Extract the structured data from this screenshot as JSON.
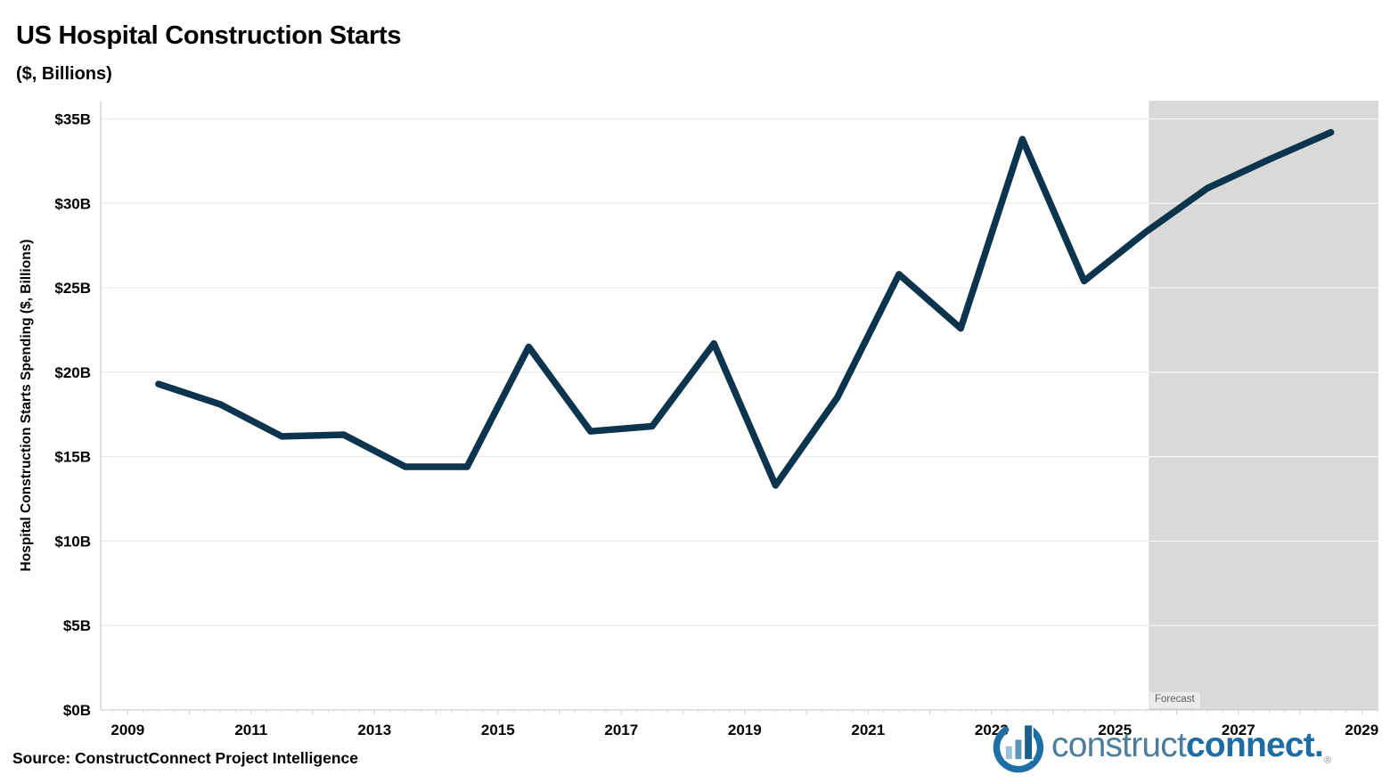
{
  "title": "US Hospital Construction Starts",
  "subtitle": "($, Billions)",
  "source": "Source: ConstructConnect Project Intelligence",
  "forecast_label": "Forecast",
  "y_axis": {
    "title": "Hospital Construction Starts Spending ($, Billions)",
    "tick_labels": [
      "$0B",
      "$5B",
      "$10B",
      "$15B",
      "$20B",
      "$25B",
      "$30B",
      "$35B"
    ],
    "tick_values": [
      0,
      5,
      10,
      15,
      20,
      25,
      30,
      35
    ]
  },
  "x_axis": {
    "tick_labels": [
      "2009",
      "2011",
      "2013",
      "2015",
      "2017",
      "2019",
      "2021",
      "2023",
      "2025",
      "2027",
      "2029"
    ],
    "tick_values": [
      2009,
      2011,
      2013,
      2015,
      2017,
      2019,
      2021,
      2023,
      2025,
      2027,
      2029
    ]
  },
  "logo": {
    "text_light": "construct",
    "text_bold": "connect.",
    "registered": "®"
  },
  "colors": {
    "line": "#0d344d",
    "forecast_band": "#d9d9d9",
    "gridline": "#ececec",
    "gridline_on_band": "#f7f7f7",
    "axis": "#cfcfcf",
    "minor_tick": "#dedede",
    "tick_text": "#000000",
    "logo_light": "#4d7d9b",
    "logo_bold": "#1f6ba3"
  },
  "chart_data": {
    "type": "line",
    "title": "US Hospital Construction Starts",
    "xlabel": "",
    "ylabel": "Hospital Construction Starts Spending ($, Billions)",
    "x": [
      2009,
      2010,
      2011,
      2012,
      2013,
      2014,
      2015,
      2016,
      2017,
      2018,
      2019,
      2020,
      2021,
      2022,
      2023,
      2024,
      2025,
      2026,
      2027,
      2028
    ],
    "values": [
      19.3,
      18.1,
      16.2,
      16.3,
      14.4,
      14.4,
      21.5,
      16.5,
      16.8,
      21.7,
      13.3,
      18.5,
      25.8,
      22.6,
      33.8,
      25.4,
      28.3,
      30.9,
      32.6,
      34.2
    ],
    "x_plot_offset": 0.5,
    "ylim": [
      0,
      36
    ],
    "xlim": [
      2008.57,
      2029.27
    ],
    "y_tick_step": 5,
    "forecast_start": 2025.55,
    "grid": true,
    "legend": false,
    "annotations": [
      "Forecast"
    ]
  }
}
